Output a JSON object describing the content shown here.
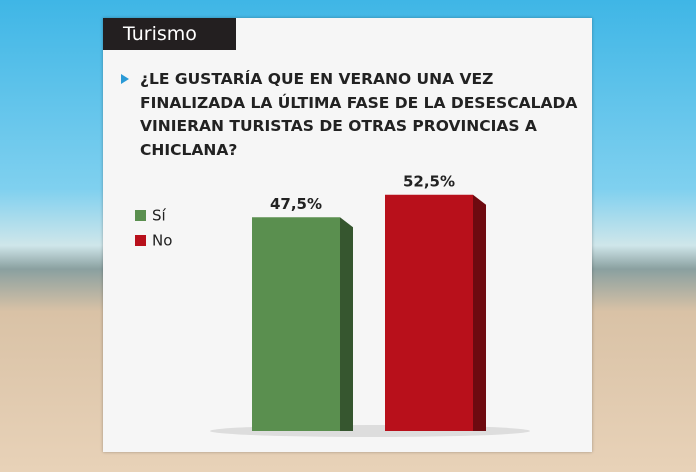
{
  "header": "Turismo",
  "chart_data": {
    "type": "bar",
    "title": "¿LE GUSTARÍA QUE EN VERANO UNA VEZ FINALIZADA LA ÚLTIMA FASE DE LA DESESCALADA VINIERAN TURISTAS DE OTRAS PROVINCIAS A CHICLANA?",
    "categories": [
      "Sí",
      "No"
    ],
    "values": [
      47.5,
      52.5
    ],
    "value_labels": [
      "47,5%",
      "52,5%"
    ],
    "colors": [
      "#5a8f4f",
      "#b8101b"
    ]
  }
}
